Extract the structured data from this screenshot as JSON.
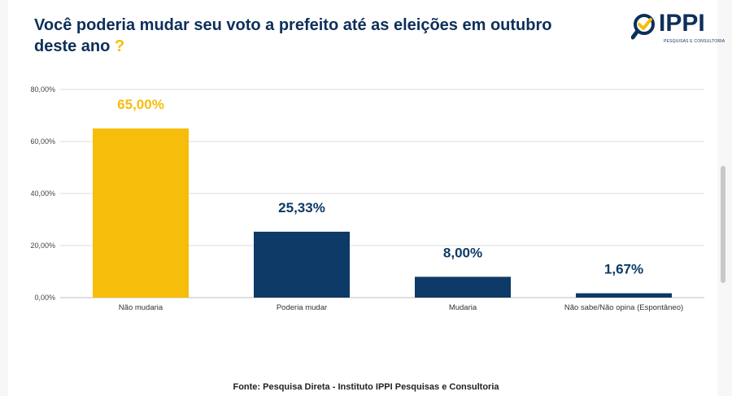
{
  "page": {
    "title_text": "Você poderia mudar seu voto a prefeito até as eleições em outubro deste ano",
    "title_mark": "?",
    "source": "Fonte: Pesquisa Direta - Instituto IPPI Pesquisas e Consultoria"
  },
  "logo": {
    "text": "IPPI",
    "tagline": "PESQUISAS E CONSULTORIA",
    "icon": "magnifier-check-icon"
  },
  "colors": {
    "highlight": "#f6bd0a",
    "primary": "#0d3a66",
    "title": "#0d2f5a"
  },
  "chart_data": {
    "type": "bar",
    "title": "",
    "xlabel": "",
    "ylabel": "",
    "categories": [
      "Não mudaria",
      "Poderia mudar",
      "Mudaria",
      "Não sabe/Não opina (Espontâneo)"
    ],
    "values": [
      65.0,
      25.33,
      8.0,
      1.67
    ],
    "data_labels": [
      "65,00%",
      "25,33%",
      "8,00%",
      "1,67%"
    ],
    "bar_colors": [
      "#f6bd0a",
      "#0d3a66",
      "#0d3a66",
      "#0d3a66"
    ],
    "label_colors": [
      "#f6bd0a",
      "#0d3a66",
      "#0d3a66",
      "#0d3a66"
    ],
    "ylim": [
      0,
      80
    ],
    "yticks": [
      0,
      20,
      40,
      60,
      80
    ],
    "ytick_labels": [
      "0,00%",
      "20,00%",
      "40,00%",
      "60,00%",
      "80,00%"
    ],
    "grid": true,
    "legend": "none"
  }
}
